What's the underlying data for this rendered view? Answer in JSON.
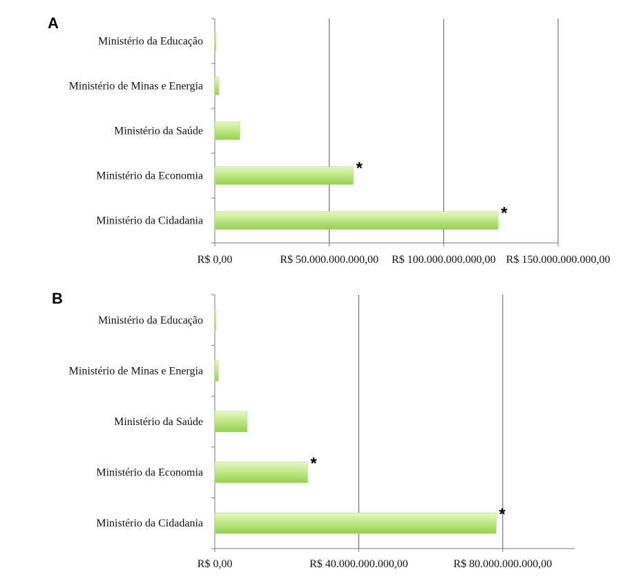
{
  "chart_data": [
    {
      "type": "bar",
      "orientation": "horizontal",
      "panel_label": "A",
      "categories": [
        "Ministério da Educação",
        "Ministério de Minas e Energia",
        "Ministério da Saúde",
        "Ministério da Economia",
        "Ministério da Cidadania"
      ],
      "values": [
        300000000,
        1800000000,
        11000000000,
        60500000000,
        123800000000
      ],
      "annotations": [
        "",
        "",
        "",
        "*",
        "*"
      ],
      "xlim": [
        0,
        150000000000
      ],
      "xticks": [
        0,
        50000000000,
        100000000000,
        150000000000
      ],
      "xtick_labels": [
        "R$ 0,00",
        "R$ 50.000.000.000,00",
        "R$ 100.000.000.000,00",
        "R$ 150.000.000.000,00"
      ],
      "grid": "vertical",
      "bar_color": "#b5e27a"
    },
    {
      "type": "bar",
      "orientation": "horizontal",
      "panel_label": "B",
      "categories": [
        "Ministério da Educação",
        "Ministério de Minas e Energia",
        "Ministério da Saúde",
        "Ministério da Economia",
        "Ministério da Cidadania"
      ],
      "values": [
        200000000,
        1000000000,
        9000000000,
        25800000000,
        78200000000
      ],
      "annotations": [
        "",
        "",
        "",
        "*",
        "*"
      ],
      "xlim": [
        0,
        100000000000
      ],
      "xticks": [
        0,
        40000000000,
        80000000000
      ],
      "xtick_labels": [
        "R$ 0,00",
        "R$ 40.000.000.000,00",
        "R$ 80.000.000.000,00"
      ],
      "grid": "vertical",
      "bar_color": "#b5e27a"
    }
  ]
}
